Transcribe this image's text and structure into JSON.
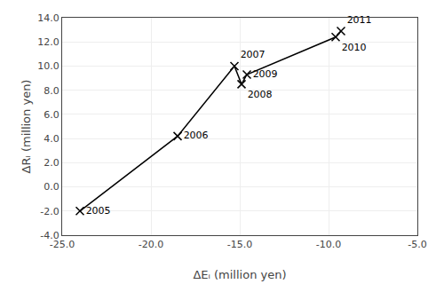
{
  "chart_data": {
    "type": "line",
    "x": [
      -24.0,
      -18.5,
      -15.3,
      -14.9,
      -14.6,
      -9.6,
      -9.3
    ],
    "values": [
      -2.0,
      4.2,
      10.0,
      8.5,
      9.3,
      12.4,
      12.9
    ],
    "labels": [
      "2005",
      "2006",
      "2007",
      "2008",
      "2009",
      "2010",
      "2011"
    ],
    "xlabel": "ΔEᵢ (million yen)",
    "ylabel": "ΔRᵢ (million yen)",
    "xlim": [
      -25.0,
      -5.0
    ],
    "ylim": [
      -4.0,
      14.0
    ],
    "xticks": [
      {
        "value": -25,
        "label": "-25.0"
      },
      {
        "value": -20,
        "label": "-20.0"
      },
      {
        "value": -15,
        "label": "-15.0"
      },
      {
        "value": -10,
        "label": "-10.0"
      },
      {
        "value": -5,
        "label": "-5.0"
      }
    ],
    "yticks": [
      {
        "value": -4,
        "label": "-4.0"
      },
      {
        "value": -2,
        "label": "-2.0"
      },
      {
        "value": 0,
        "label": "0.0"
      },
      {
        "value": 2,
        "label": "2.0"
      },
      {
        "value": 4,
        "label": "4.0"
      },
      {
        "value": 6,
        "label": "6.0"
      },
      {
        "value": 8,
        "label": "8.0"
      },
      {
        "value": 10,
        "label": "10.0"
      },
      {
        "value": 12,
        "label": "12.0"
      },
      {
        "value": 14,
        "label": "14.0"
      }
    ],
    "color": "#000000",
    "marker": "x",
    "grid": true
  }
}
